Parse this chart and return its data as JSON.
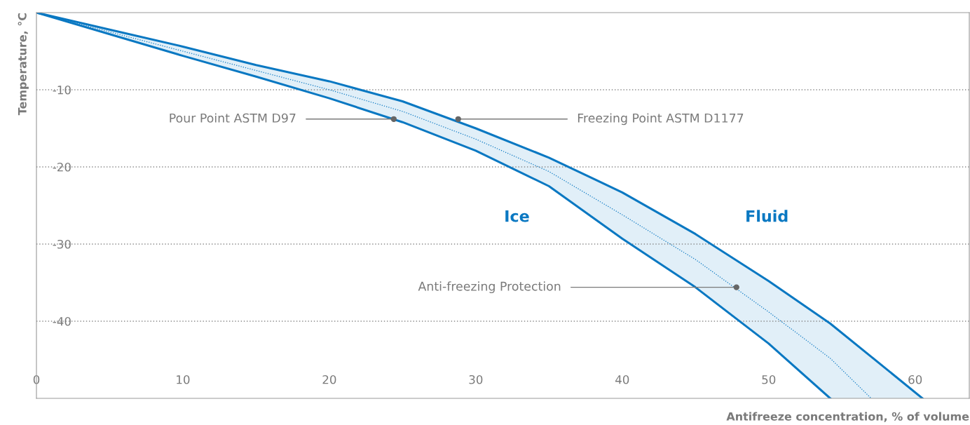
{
  "chart_data": {
    "type": "line",
    "xlabel": "Antifreeze concentration, % of volume",
    "ylabel": "Temperature, °C",
    "x": [
      0,
      5,
      10,
      15,
      20,
      25,
      30,
      35,
      40,
      45,
      50,
      54.2,
      57,
      60.5
    ],
    "series": [
      {
        "color": "#0a78c2",
        "line_style": "solid",
        "values": [
          0,
          -2.2,
          -4.4,
          -6.8,
          -8.9,
          -11.5,
          -15.0,
          -18.8,
          -23.3,
          -28.7,
          -34.8,
          -40.3,
          -44.6,
          -50
        ]
      },
      {
        "color": "#0a78c2",
        "line_style": "solid",
        "values": [
          0,
          -2.8,
          -5.6,
          -8.3,
          -11.1,
          -14.2,
          -17.9,
          -22.5,
          -29.3,
          -35.6,
          -42.9,
          -50,
          null,
          null
        ]
      },
      {
        "color": "#0a78c2",
        "line_style": "dotted",
        "values": [
          0,
          -2.5,
          -5.0,
          -7.5,
          -10.0,
          -12.8,
          -16.4,
          -20.6,
          -26.2,
          -32.0,
          -38.8,
          -44.8,
          -50,
          null
        ],
        "lower": [
          0,
          -2.8,
          -5.6,
          -8.3,
          -11.1,
          -14.2,
          -17.9,
          -22.5,
          -29.3,
          -35.6,
          -42.9,
          -50,
          -50,
          -50
        ],
        "upper": [
          0,
          -2.2,
          -4.4,
          -6.8,
          -8.9,
          -11.5,
          -15.0,
          -18.8,
          -23.3,
          -28.7,
          -34.8,
          -40.3,
          -44.6,
          -50
        ]
      }
    ],
    "annotations": [
      {
        "text": "Pour Point ASTM D97",
        "x": 24.4,
        "y": -13.8
      },
      {
        "text": "Freezing Point ASTM D1177",
        "x": 28.8,
        "y": -13.8
      },
      {
        "text": "Anti-freezing Protection",
        "x": 47.8,
        "y": -35.6
      },
      "Ice",
      "Fluid"
    ],
    "xlim": [
      0,
      63.7
    ],
    "ylim": [
      -50,
      0
    ],
    "xticks": [
      0,
      10,
      20,
      30,
      40,
      50,
      60
    ],
    "yticks": [
      -10,
      -20,
      -30,
      -40
    ],
    "grid": "y",
    "legend": false,
    "marker": "none"
  }
}
